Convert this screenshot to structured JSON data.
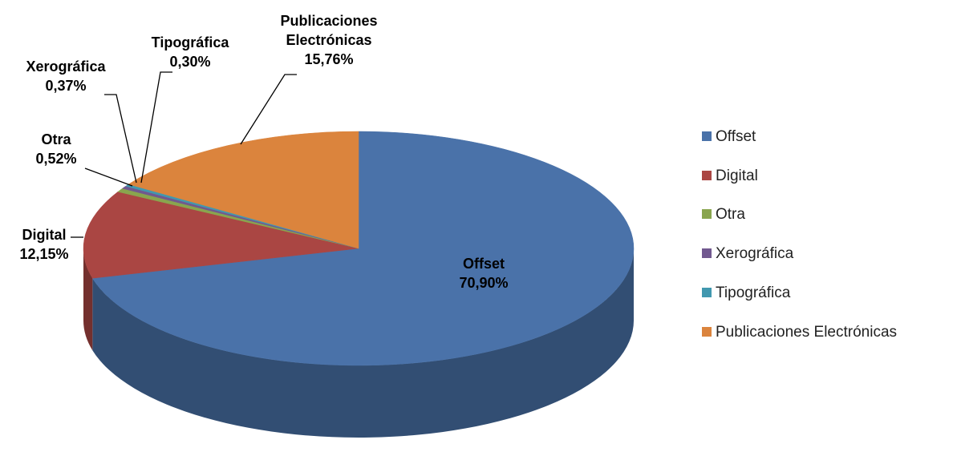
{
  "chart_data": {
    "type": "pie",
    "categories": [
      "Offset",
      "Digital",
      "Otra",
      "Xerográfica",
      "Tipográfica",
      "Publicaciones Electrónicas"
    ],
    "values": [
      70.9,
      12.15,
      0.52,
      0.37,
      0.3,
      15.76
    ],
    "value_labels": [
      "70,90%",
      "12,15%",
      "0,52%",
      "0,37%",
      "0,30%",
      "15,76%"
    ],
    "colors": [
      "#4a72a9",
      "#aa4643",
      "#89a54e",
      "#71588f",
      "#4198af",
      "#db843d"
    ],
    "legend": "right"
  }
}
